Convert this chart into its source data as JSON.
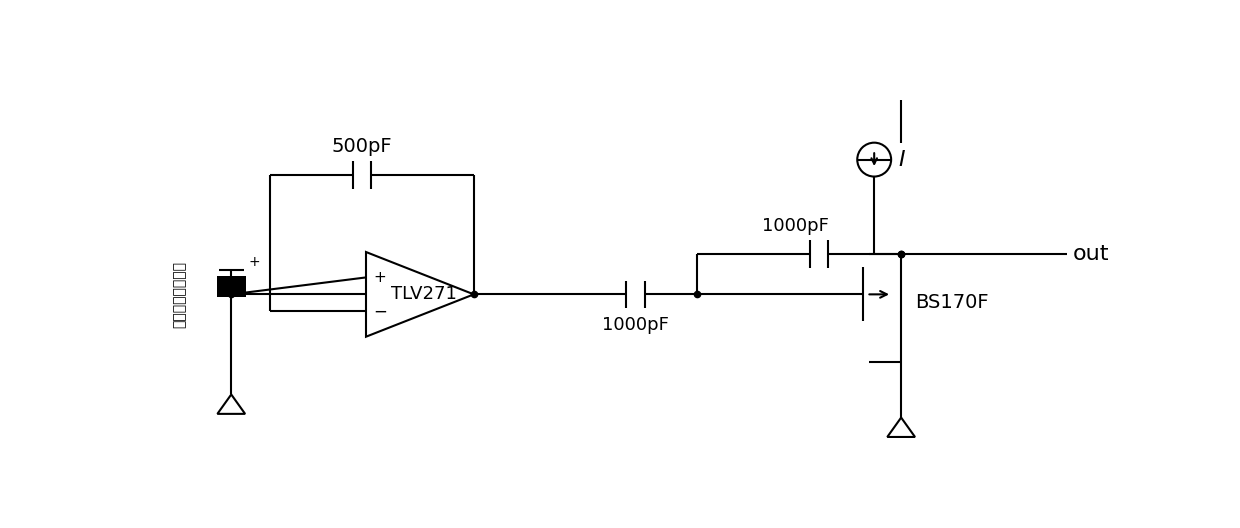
{
  "bg_color": "#ffffff",
  "line_color": "#000000",
  "line_width": 1.5,
  "dot_size": 4.5,
  "fig_width": 12.4,
  "fig_height": 5.28,
  "labels": {
    "cap500": "500pF",
    "cap1000_gate": "1000pF",
    "cap1000_drain": "1000pF",
    "opamp": "TLV271",
    "mosfet": "BS170F",
    "current_source": "I",
    "output": "out",
    "sensor_label": "压电式振动传感器"
  },
  "font_size": 14,
  "font_size_label": 13
}
